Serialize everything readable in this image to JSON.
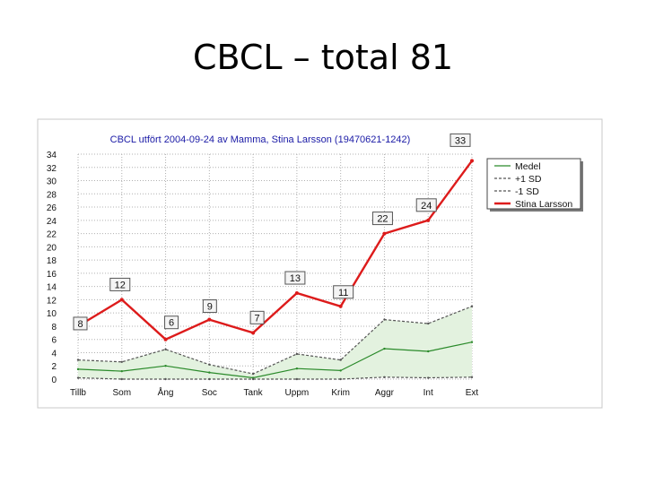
{
  "slide": {
    "title": "CBCL – total 81"
  },
  "chart_data": {
    "type": "line",
    "title": "CBCL utfört 2004-09-24 av Mamma, Stina Larsson (19470621-1242)",
    "categories": [
      "Tillb",
      "Som",
      "Ång",
      "Soc",
      "Tank",
      "Uppm",
      "Krim",
      "Aggr",
      "Int",
      "Ext"
    ],
    "ylim": [
      0,
      34
    ],
    "yticks": [
      0,
      2,
      4,
      6,
      8,
      10,
      12,
      14,
      16,
      18,
      20,
      22,
      24,
      26,
      28,
      30,
      32,
      34
    ],
    "grid": true,
    "legend_position": "top-right",
    "series": [
      {
        "name": "Medel",
        "values": [
          1.5,
          1.2,
          2.0,
          1.0,
          0.2,
          1.6,
          1.3,
          4.6,
          4.2,
          5.6
        ],
        "color": "#2a8a2a",
        "style": "solid"
      },
      {
        "name": "+1 SD",
        "values": [
          2.9,
          2.6,
          4.5,
          2.2,
          0.8,
          3.8,
          2.9,
          9.0,
          8.4,
          11.0
        ],
        "color": "#555555",
        "style": "dashed"
      },
      {
        "name": "-1 SD",
        "values": [
          0.2,
          0,
          0,
          0,
          0,
          0,
          0,
          0.3,
          0.2,
          0.3
        ],
        "color": "#555555",
        "style": "dashed"
      },
      {
        "name": "Stina Larsson",
        "values": [
          8,
          12,
          6,
          9,
          7,
          13,
          11,
          22,
          24,
          33
        ],
        "color": "#dd1b1b",
        "style": "solid"
      }
    ],
    "data_labels": [
      "8",
      "12",
      "6",
      "9",
      "7",
      "13",
      "11",
      "22",
      "24",
      "33"
    ],
    "band_fill": "#e3f2df"
  }
}
